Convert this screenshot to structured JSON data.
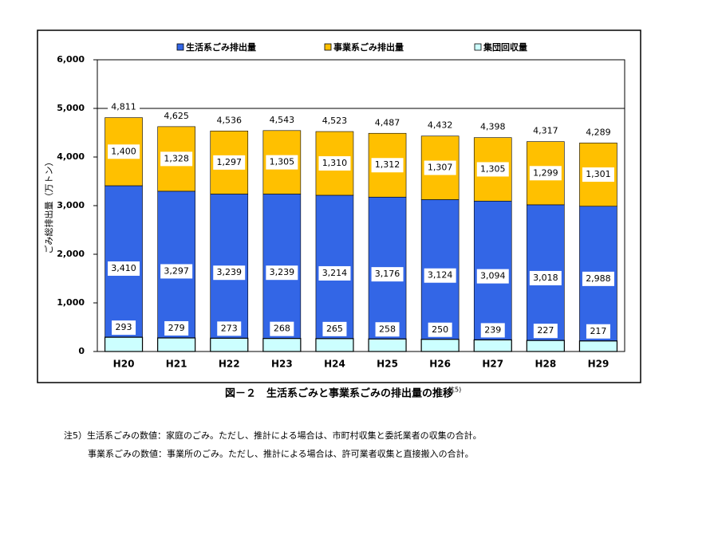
{
  "chart_data": {
    "type": "bar",
    "categories": [
      "H20",
      "H21",
      "H22",
      "H23",
      "H24",
      "H25",
      "H26",
      "H27",
      "H28",
      "H29"
    ],
    "series": [
      {
        "name": "生活系ごみ排出量",
        "color": "#3366e6",
        "values": [
          3410,
          3297,
          3239,
          3239,
          3214,
          3176,
          3124,
          3094,
          3018,
          2988
        ],
        "value_labels": [
          "3,410",
          "3,297",
          "3,239",
          "3,239",
          "3,214",
          "3,176",
          "3,124",
          "3,094",
          "3,018",
          "2,988"
        ]
      },
      {
        "name": "事業系ごみ排出量",
        "color": "#ffc000",
        "values": [
          1400,
          1328,
          1297,
          1305,
          1310,
          1312,
          1307,
          1305,
          1299,
          1301
        ],
        "value_labels": [
          "1,400",
          "1,328",
          "1,297",
          "1,305",
          "1,310",
          "1,312",
          "1,307",
          "1,305",
          "1,299",
          "1,301"
        ]
      },
      {
        "name": "集団回収量",
        "color": "#ccffff",
        "overlay": true,
        "values": [
          293,
          279,
          273,
          268,
          265,
          258,
          250,
          239,
          227,
          217
        ]
      }
    ],
    "totals": {
      "values": [
        4811,
        4625,
        4536,
        4543,
        4523,
        4487,
        4432,
        4398,
        4317,
        4289
      ],
      "value_labels": [
        "4,811",
        "4,625",
        "4,536",
        "4,543",
        "4,523",
        "4,487",
        "4,432",
        "4,398",
        "4,317",
        "4,289"
      ]
    },
    "ylabel": "ごみ総排出量（万トン）",
    "ylim": [
      0,
      6000
    ],
    "yticks": [
      0,
      {
        "value": 1000,
        "label": "1,000"
      },
      {
        "value": 2000,
        "label": "2,000"
      },
      {
        "value": 3000,
        "label": "3,000"
      },
      {
        "value": 4000,
        "label": "4,000"
      },
      {
        "value": 5000,
        "label": "5,000"
      },
      {
        "value": 6000,
        "label": "6,000"
      }
    ],
    "gridlines": [
      5000
    ],
    "caption": "図－２　生活系ごみと事業系ごみの排出量の推移",
    "caption_note": "注5)",
    "notes": [
      "注5）生活系ごみの数値：家庭のごみ。ただし、推計による場合は、市町村収集と委託業者の収集の合計。",
      "事業系ごみの数値：事業所のごみ。ただし、推計による場合は、許可業者収集と直接搬入の合計。"
    ]
  }
}
